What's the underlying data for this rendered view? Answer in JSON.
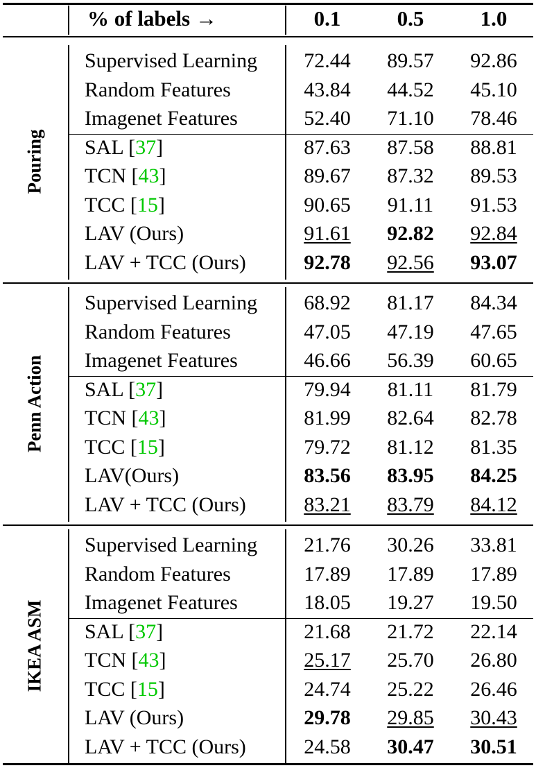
{
  "header": {
    "label_col": "% of labels →",
    "cols": [
      "0.1",
      "0.5",
      "1.0"
    ]
  },
  "groups": [
    {
      "name": "Pouring",
      "rows": [
        {
          "method": "Supervised Learning",
          "cite": "",
          "values": [
            "72.44",
            "89.57",
            "92.86"
          ],
          "styles": [
            "",
            "",
            ""
          ]
        },
        {
          "method": "Random Features",
          "cite": "",
          "values": [
            "43.84",
            "44.52",
            "45.10"
          ],
          "styles": [
            "",
            "",
            ""
          ]
        },
        {
          "method": "Imagenet Features",
          "cite": "",
          "values": [
            "52.40",
            "71.10",
            "78.46"
          ],
          "styles": [
            "",
            "",
            ""
          ]
        },
        {
          "method": "SAL",
          "cite": "37",
          "values": [
            "87.63",
            "87.58",
            "88.81"
          ],
          "styles": [
            "",
            "",
            ""
          ]
        },
        {
          "method": "TCN",
          "cite": "43",
          "values": [
            "89.67",
            "87.32",
            "89.53"
          ],
          "styles": [
            "",
            "",
            ""
          ]
        },
        {
          "method": "TCC",
          "cite": "15",
          "values": [
            "90.65",
            "91.11",
            "91.53"
          ],
          "styles": [
            "",
            "",
            ""
          ]
        },
        {
          "method": "LAV (Ours)",
          "cite": "",
          "values": [
            "91.61",
            "92.82",
            "92.84"
          ],
          "styles": [
            "underline",
            "bold",
            "underline"
          ]
        },
        {
          "method": "LAV + TCC (Ours)",
          "cite": "",
          "values": [
            "92.78",
            "92.56",
            "93.07"
          ],
          "styles": [
            "bold",
            "underline",
            "bold"
          ]
        }
      ]
    },
    {
      "name": "Penn Action",
      "rows": [
        {
          "method": "Supervised Learning",
          "cite": "",
          "values": [
            "68.92",
            "81.17",
            "84.34"
          ],
          "styles": [
            "",
            "",
            ""
          ]
        },
        {
          "method": "Random Features",
          "cite": "",
          "values": [
            "47.05",
            "47.19",
            "47.65"
          ],
          "styles": [
            "",
            "",
            ""
          ]
        },
        {
          "method": "Imagenet Features",
          "cite": "",
          "values": [
            "46.66",
            "56.39",
            "60.65"
          ],
          "styles": [
            "",
            "",
            ""
          ]
        },
        {
          "method": "SAL",
          "cite": "37",
          "values": [
            "79.94",
            "81.11",
            "81.79"
          ],
          "styles": [
            "",
            "",
            ""
          ]
        },
        {
          "method": "TCN",
          "cite": "43",
          "values": [
            "81.99",
            "82.64",
            "82.78"
          ],
          "styles": [
            "",
            "",
            ""
          ]
        },
        {
          "method": "TCC",
          "cite": "15",
          "values": [
            "79.72",
            "81.12",
            "81.35"
          ],
          "styles": [
            "",
            "",
            ""
          ]
        },
        {
          "method": "LAV(Ours)",
          "cite": "",
          "values": [
            "83.56",
            "83.95",
            "84.25"
          ],
          "styles": [
            "bold",
            "bold",
            "bold"
          ]
        },
        {
          "method": "LAV + TCC (Ours)",
          "cite": "",
          "values": [
            "83.21",
            "83.79",
            "84.12"
          ],
          "styles": [
            "underline",
            "underline",
            "underline"
          ]
        }
      ]
    },
    {
      "name": "IKEA ASM",
      "rows": [
        {
          "method": "Supervised Learning",
          "cite": "",
          "values": [
            "21.76",
            "30.26",
            "33.81"
          ],
          "styles": [
            "",
            "",
            ""
          ]
        },
        {
          "method": "Random Features",
          "cite": "",
          "values": [
            "17.89",
            "17.89",
            "17.89"
          ],
          "styles": [
            "",
            "",
            ""
          ]
        },
        {
          "method": "Imagenet Features",
          "cite": "",
          "values": [
            "18.05",
            "19.27",
            "19.50"
          ],
          "styles": [
            "",
            "",
            ""
          ]
        },
        {
          "method": "SAL",
          "cite": "37",
          "values": [
            "21.68",
            "21.72",
            "22.14"
          ],
          "styles": [
            "",
            "",
            ""
          ]
        },
        {
          "method": "TCN",
          "cite": "43",
          "values": [
            "25.17",
            "25.70",
            "26.80"
          ],
          "styles": [
            "underline",
            "",
            ""
          ]
        },
        {
          "method": "TCC",
          "cite": "15",
          "values": [
            "24.74",
            "25.22",
            "26.46"
          ],
          "styles": [
            "",
            "",
            ""
          ]
        },
        {
          "method": "LAV (Ours)",
          "cite": "",
          "values": [
            "29.78",
            "29.85",
            "30.43"
          ],
          "styles": [
            "bold",
            "underline",
            "underline"
          ]
        },
        {
          "method": "LAV + TCC (Ours)",
          "cite": "",
          "values": [
            "24.58",
            "30.47",
            "30.51"
          ],
          "styles": [
            "",
            "bold",
            "bold"
          ]
        }
      ]
    }
  ]
}
